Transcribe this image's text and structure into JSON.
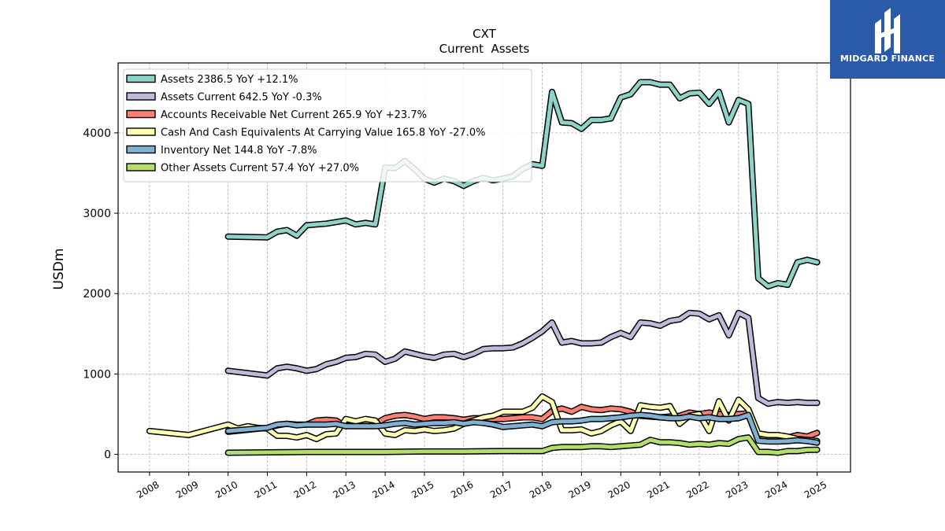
{
  "chart_data": {
    "type": "line",
    "title": "CXT",
    "subtitle": "Current  Assets",
    "xlabel": "",
    "ylabel": "USDm",
    "xlim": [
      2007.2,
      2025.85
    ],
    "ylim": [
      -220,
      4870
    ],
    "y_ticks": [
      0,
      1000,
      2000,
      3000,
      4000
    ],
    "x_ticks": [
      "2008",
      "2009",
      "2010",
      "2011",
      "2012",
      "2013",
      "2014",
      "2015",
      "2016",
      "2017",
      "2018",
      "2019",
      "2020",
      "2021",
      "2022",
      "2023",
      "2024",
      "2025"
    ],
    "grid": true,
    "legend_position": "top-left",
    "series": [
      {
        "name": "Assets",
        "legend": "Assets  2386.5 YoY +12.1%",
        "color": "#8dd3c7",
        "x": [
          2010.0,
          2011.0,
          2011.25,
          2011.5,
          2011.75,
          2012.0,
          2012.25,
          2012.5,
          2012.75,
          2013.0,
          2013.25,
          2013.5,
          2013.75,
          2014.0,
          2014.25,
          2014.5,
          2014.75,
          2015.0,
          2015.25,
          2015.5,
          2015.75,
          2016.0,
          2016.25,
          2016.5,
          2016.75,
          2017.0,
          2017.25,
          2017.5,
          2017.75,
          2018.0,
          2018.25,
          2018.5,
          2018.75,
          2019.0,
          2019.25,
          2019.5,
          2019.75,
          2020.0,
          2020.25,
          2020.5,
          2020.75,
          2021.0,
          2021.25,
          2021.5,
          2021.75,
          2022.0,
          2022.25,
          2022.5,
          2022.75,
          2023.0,
          2023.25,
          2023.5,
          2023.75,
          2024.0,
          2024.25,
          2024.5,
          2024.75,
          2025.0
        ],
        "values": [
          2710,
          2700,
          2770,
          2790,
          2720,
          2850,
          2860,
          2870,
          2890,
          2910,
          2860,
          2880,
          2860,
          3570,
          3560,
          3650,
          3550,
          3430,
          3380,
          3430,
          3400,
          3340,
          3400,
          3440,
          3410,
          3430,
          3460,
          3550,
          3610,
          3590,
          4510,
          4130,
          4120,
          4050,
          4160,
          4160,
          4180,
          4440,
          4480,
          4630,
          4630,
          4600,
          4600,
          4430,
          4490,
          4500,
          4360,
          4510,
          4130,
          4410,
          4360,
          2190,
          2090,
          2130,
          2110,
          2390,
          2420,
          2390
        ]
      },
      {
        "name": "Assets Current",
        "legend": "Assets Current  642.5 YoY -0.3%",
        "color": "#bebada",
        "x": [
          2010.0,
          2011.0,
          2011.25,
          2011.5,
          2011.75,
          2012.0,
          2012.25,
          2012.5,
          2012.75,
          2013.0,
          2013.25,
          2013.5,
          2013.75,
          2014.0,
          2014.25,
          2014.5,
          2014.75,
          2015.0,
          2015.25,
          2015.5,
          2015.75,
          2016.0,
          2016.25,
          2016.5,
          2016.75,
          2017.0,
          2017.25,
          2017.5,
          2017.75,
          2018.0,
          2018.25,
          2018.5,
          2018.75,
          2019.0,
          2019.25,
          2019.5,
          2019.75,
          2020.0,
          2020.25,
          2020.5,
          2020.75,
          2021.0,
          2021.25,
          2021.5,
          2021.75,
          2022.0,
          2022.25,
          2022.5,
          2022.75,
          2023.0,
          2023.25,
          2023.5,
          2023.75,
          2024.0,
          2024.25,
          2024.5,
          2024.75,
          2025.0
        ],
        "values": [
          1040,
          980,
          1070,
          1090,
          1070,
          1040,
          1060,
          1120,
          1150,
          1200,
          1210,
          1250,
          1240,
          1150,
          1190,
          1280,
          1250,
          1220,
          1200,
          1240,
          1250,
          1210,
          1250,
          1310,
          1320,
          1320,
          1330,
          1380,
          1450,
          1530,
          1640,
          1390,
          1410,
          1380,
          1380,
          1390,
          1460,
          1510,
          1460,
          1640,
          1630,
          1600,
          1660,
          1680,
          1760,
          1750,
          1680,
          1730,
          1480,
          1760,
          1700,
          700,
          630,
          650,
          640,
          650,
          640,
          640
        ]
      },
      {
        "name": "Accounts Receivable Net Current",
        "legend": "Accounts Receivable Net Current  265.9 YoY +23.7%",
        "color": "#fb8072",
        "x": [
          2010.0,
          2011.0,
          2011.25,
          2011.5,
          2011.75,
          2012.0,
          2012.25,
          2012.5,
          2012.75,
          2013.0,
          2013.25,
          2013.5,
          2013.75,
          2014.0,
          2014.25,
          2014.5,
          2014.75,
          2015.0,
          2015.25,
          2015.5,
          2015.75,
          2016.0,
          2016.25,
          2016.5,
          2016.75,
          2017.0,
          2017.25,
          2017.5,
          2017.75,
          2018.0,
          2018.25,
          2018.5,
          2018.75,
          2019.0,
          2019.25,
          2019.5,
          2019.75,
          2020.0,
          2020.25,
          2020.5,
          2020.75,
          2021.0,
          2021.25,
          2021.5,
          2021.75,
          2022.0,
          2022.25,
          2022.5,
          2022.75,
          2023.0,
          2023.25,
          2023.5,
          2023.75,
          2024.0,
          2024.25,
          2024.5,
          2024.75,
          2025.0
        ],
        "values": [
          280,
          330,
          360,
          380,
          370,
          370,
          420,
          430,
          420,
          350,
          380,
          390,
          380,
          450,
          480,
          490,
          470,
          440,
          460,
          460,
          450,
          430,
          450,
          450,
          440,
          440,
          450,
          460,
          460,
          440,
          540,
          570,
          530,
          590,
          560,
          550,
          570,
          560,
          530,
          480,
          470,
          460,
          470,
          480,
          520,
          500,
          520,
          500,
          490,
          500,
          510,
          230,
          215,
          215,
          210,
          240,
          220,
          266
        ]
      },
      {
        "name": "Cash And Cash Equivalents At Carrying Value",
        "legend": "Cash And Cash Equivalents At Carrying Value  165.8 YoY -27.0%",
        "color": "#ffffb3",
        "x": [
          2008.0,
          2009.0,
          2010.0,
          2010.25,
          2010.5,
          2010.75,
          2011.0,
          2011.25,
          2011.5,
          2011.75,
          2012.0,
          2012.25,
          2012.5,
          2012.75,
          2013.0,
          2013.25,
          2013.5,
          2013.75,
          2014.0,
          2014.25,
          2014.5,
          2014.75,
          2015.0,
          2015.25,
          2015.5,
          2015.75,
          2016.0,
          2016.25,
          2016.5,
          2016.75,
          2017.0,
          2017.25,
          2017.5,
          2017.75,
          2018.0,
          2018.25,
          2018.5,
          2018.75,
          2019.0,
          2019.25,
          2019.5,
          2019.75,
          2020.0,
          2020.25,
          2020.5,
          2020.75,
          2021.0,
          2021.25,
          2021.5,
          2021.75,
          2022.0,
          2022.25,
          2022.5,
          2022.75,
          2023.0,
          2023.25,
          2023.5,
          2023.75,
          2024.0,
          2024.25,
          2024.5,
          2024.75,
          2025.0
        ],
        "values": [
          290,
          240,
          370,
          320,
          350,
          330,
          320,
          230,
          230,
          210,
          240,
          190,
          250,
          260,
          440,
          410,
          440,
          420,
          260,
          240,
          300,
          290,
          310,
          290,
          300,
          320,
          380,
          420,
          460,
          480,
          530,
          530,
          530,
          580,
          720,
          650,
          300,
          300,
          310,
          260,
          290,
          360,
          410,
          290,
          610,
          590,
          580,
          600,
          380,
          480,
          500,
          290,
          660,
          420,
          680,
          560,
          260,
          240,
          240,
          220,
          190,
          180,
          166
        ]
      },
      {
        "name": "Inventory Net",
        "legend": "Inventory Net  144.8 YoY -7.8%",
        "color": "#80b1d3",
        "x": [
          2010.0,
          2011.0,
          2011.25,
          2011.5,
          2011.75,
          2012.0,
          2012.25,
          2012.5,
          2012.75,
          2013.0,
          2013.25,
          2013.5,
          2013.75,
          2014.0,
          2014.25,
          2014.5,
          2014.75,
          2015.0,
          2015.25,
          2015.5,
          2015.75,
          2016.0,
          2016.25,
          2016.5,
          2016.75,
          2017.0,
          2017.25,
          2017.5,
          2017.75,
          2018.0,
          2018.25,
          2018.5,
          2018.75,
          2019.0,
          2019.25,
          2019.5,
          2019.75,
          2020.0,
          2020.25,
          2020.5,
          2020.75,
          2021.0,
          2021.25,
          2021.5,
          2021.75,
          2022.0,
          2022.25,
          2022.5,
          2022.75,
          2023.0,
          2023.25,
          2023.5,
          2023.75,
          2024.0,
          2024.25,
          2024.5,
          2024.75,
          2025.0
        ],
        "values": [
          290,
          330,
          370,
          380,
          360,
          370,
          370,
          370,
          380,
          350,
          350,
          350,
          350,
          360,
          380,
          390,
          370,
          380,
          390,
          390,
          400,
          380,
          400,
          390,
          370,
          340,
          350,
          360,
          370,
          350,
          400,
          410,
          410,
          420,
          440,
          440,
          450,
          460,
          480,
          490,
          480,
          460,
          450,
          450,
          470,
          450,
          460,
          440,
          440,
          450,
          490,
          170,
          160,
          160,
          165,
          175,
          165,
          145
        ]
      },
      {
        "name": "Other Assets Current",
        "legend": "Other Assets Current  57.4 YoY +27.0%",
        "color": "#b3de69",
        "x": [
          2010.0,
          2011.0,
          2012.0,
          2013.0,
          2014.0,
          2015.0,
          2016.0,
          2017.0,
          2018.0,
          2018.25,
          2018.5,
          2018.75,
          2019.0,
          2019.25,
          2019.5,
          2019.75,
          2020.0,
          2020.25,
          2020.5,
          2020.75,
          2021.0,
          2021.25,
          2021.5,
          2021.75,
          2022.0,
          2022.25,
          2022.5,
          2022.75,
          2023.0,
          2023.25,
          2023.5,
          2023.75,
          2024.0,
          2024.25,
          2024.5,
          2024.75,
          2025.0
        ],
        "values": [
          20,
          25,
          30,
          30,
          30,
          35,
          35,
          40,
          40,
          80,
          90,
          90,
          90,
          100,
          100,
          90,
          100,
          110,
          120,
          180,
          150,
          150,
          140,
          120,
          130,
          120,
          140,
          130,
          190,
          210,
          30,
          30,
          20,
          40,
          40,
          55,
          57
        ]
      }
    ]
  },
  "brand": {
    "name": "MIDGARD FINANCE",
    "bg_color": "#2b5aa8"
  }
}
